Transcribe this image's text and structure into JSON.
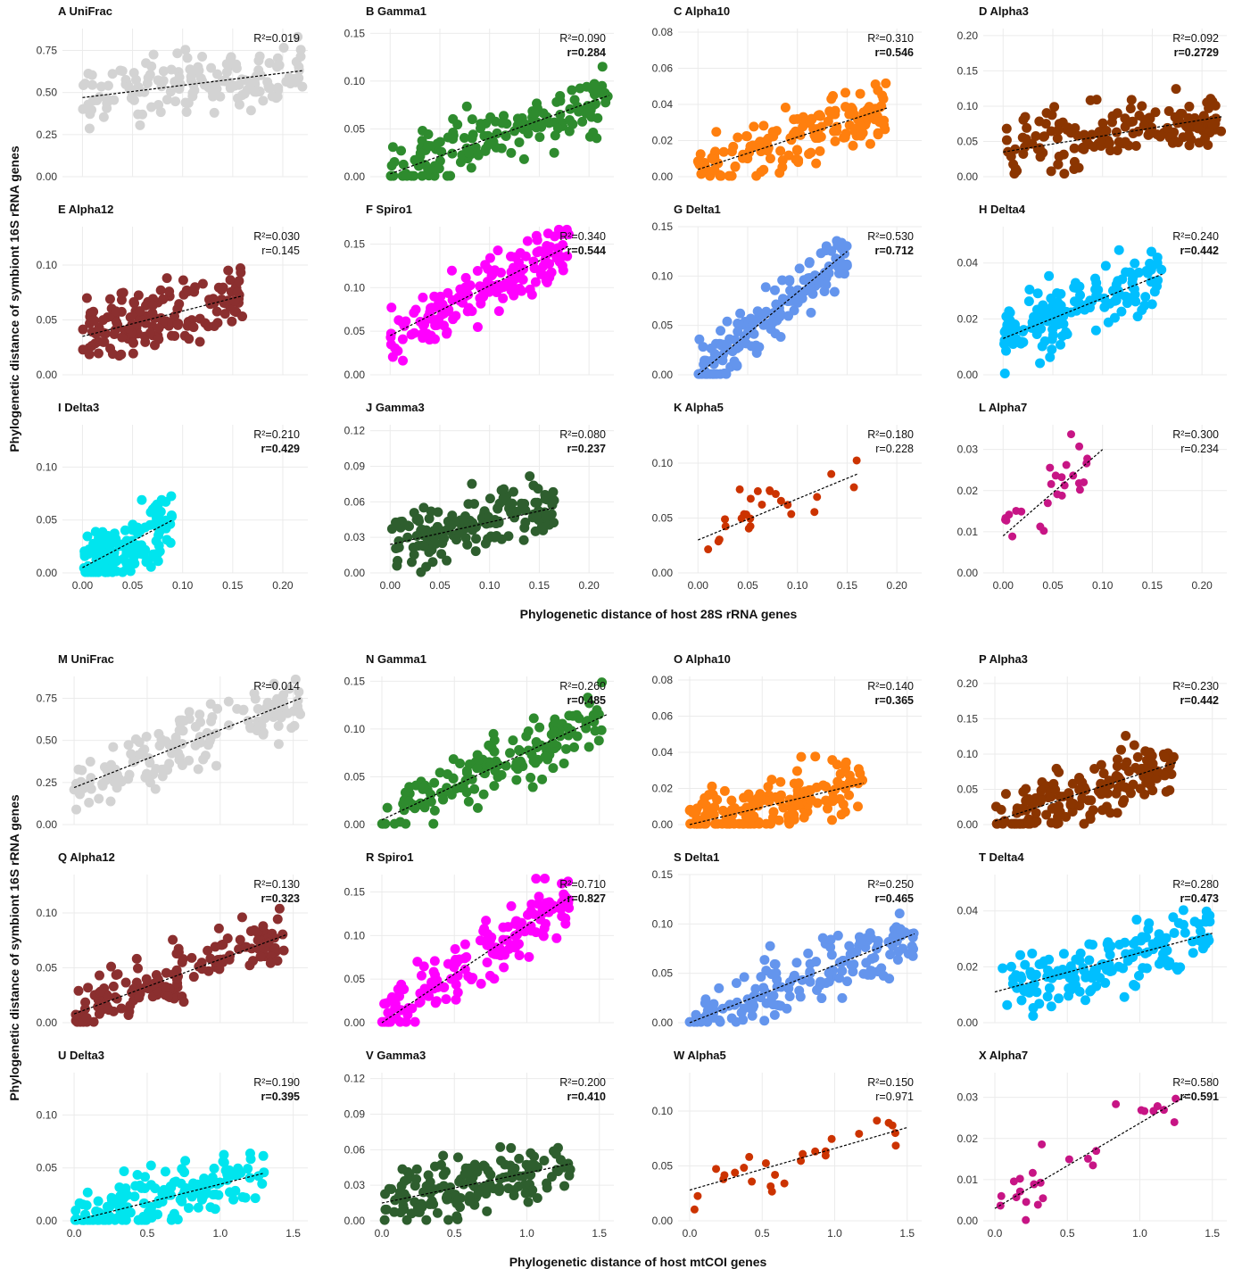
{
  "figure": {
    "x_title_top": "Phylogenetic distance of host 28S rRNA genes",
    "x_title_bottom": "Phylogenetic distance of host mtCOI genes",
    "y_title_top": "Phylogenetic distance of symbiont 16S rRNA genes",
    "y_title_bottom": "Phylogenetic distance of symbiont 16S rRNA genes"
  },
  "chart_data": [
    {
      "type": "scatter",
      "letter": "A",
      "label": "UniFrac",
      "title": "A  UniFrac",
      "color": "#d3d3d3",
      "xlim": [
        -0.02,
        0.225
      ],
      "ylim": [
        0,
        0.88
      ],
      "xticks": [],
      "yticks": [
        0,
        0.25,
        0.5,
        0.75
      ],
      "ytick_labels": [
        "0.00",
        "0.25",
        "0.50",
        "0.75"
      ],
      "r2": "R²=0.019",
      "r": "",
      "r_bold": false,
      "trend": {
        "x": [
          0,
          0.22
        ],
        "y": [
          0.47,
          0.63
        ]
      }
    },
    {
      "type": "scatter",
      "letter": "B",
      "label": "Gamma1",
      "title": "B  Gamma1",
      "color": "#2e8b2e",
      "xlim": [
        -0.02,
        0.225
      ],
      "ylim": [
        0,
        0.155
      ],
      "xticks": [],
      "yticks": [
        0,
        0.05,
        0.1,
        0.15
      ],
      "ytick_labels": [
        "0.00",
        "0.05",
        "0.10",
        "0.15"
      ],
      "r2": "R²=0.090",
      "r": "r=0.284",
      "r_bold": true,
      "trend": {
        "x": [
          0,
          0.22
        ],
        "y": [
          0.003,
          0.085
        ]
      }
    },
    {
      "type": "scatter",
      "letter": "C",
      "label": "Alpha10",
      "title": "C  Alpha10",
      "color": "#ff7f0e",
      "xlim": [
        -0.02,
        0.225
      ],
      "ylim": [
        0,
        0.082
      ],
      "xticks": [],
      "yticks": [
        0,
        0.02,
        0.04,
        0.06,
        0.08
      ],
      "ytick_labels": [
        "0.00",
        "0.02",
        "0.04",
        "0.06",
        "0.08"
      ],
      "r2": "R²=0.310",
      "r": "r=0.546",
      "r_bold": true,
      "trend": {
        "x": [
          0,
          0.19
        ],
        "y": [
          0.004,
          0.038
        ]
      }
    },
    {
      "type": "scatter",
      "letter": "D",
      "label": "Alpha3",
      "title": "D  Alpha3",
      "color": "#8b3500",
      "xlim": [
        -0.02,
        0.225
      ],
      "ylim": [
        0,
        0.21
      ],
      "xticks": [],
      "yticks": [
        0,
        0.05,
        0.1,
        0.15,
        0.2
      ],
      "ytick_labels": [
        "0.00",
        "0.05",
        "0.10",
        "0.15",
        "0.20"
      ],
      "r2": "R²=0.092",
      "r": "r=0.2729",
      "r_bold": true,
      "trend": {
        "x": [
          0,
          0.22
        ],
        "y": [
          0.035,
          0.085
        ]
      }
    },
    {
      "type": "scatter",
      "letter": "E",
      "label": "Alpha12",
      "title": "E  Alpha12",
      "color": "#8b2f2f",
      "xlim": [
        -0.02,
        0.225
      ],
      "ylim": [
        0,
        0.135
      ],
      "xticks": [],
      "yticks": [
        0,
        0.05,
        0.1
      ],
      "ytick_labels": [
        "0.00",
        "0.05",
        "0.10"
      ],
      "r2": "R²=0.030",
      "r": "r=0.145",
      "r_bold": false,
      "trend": {
        "x": [
          0,
          0.16
        ],
        "y": [
          0.035,
          0.072
        ]
      }
    },
    {
      "type": "scatter",
      "letter": "F",
      "label": "Spiro1",
      "title": "F  Spiro1",
      "color": "#ff00ff",
      "xlim": [
        -0.02,
        0.225
      ],
      "ylim": [
        0,
        0.17
      ],
      "xticks": [],
      "yticks": [
        0,
        0.05,
        0.1,
        0.15
      ],
      "ytick_labels": [
        "0.00",
        "0.05",
        "0.10",
        "0.15"
      ],
      "r2": "R²=0.340",
      "r": "r=0.544",
      "r_bold": true,
      "trend": {
        "x": [
          0,
          0.18
        ],
        "y": [
          0.045,
          0.148
        ]
      }
    },
    {
      "type": "scatter",
      "letter": "G",
      "label": "Delta1",
      "title": "G  Delta1",
      "color": "#6495ed",
      "xlim": [
        -0.02,
        0.225
      ],
      "ylim": [
        0,
        0.15
      ],
      "xticks": [],
      "yticks": [
        0,
        0.05,
        0.1,
        0.15
      ],
      "ytick_labels": [
        "0.00",
        "0.05",
        "0.10",
        "0.15"
      ],
      "r2": "R²=0.530",
      "r": "r=0.712",
      "r_bold": true,
      "trend": {
        "x": [
          0,
          0.15
        ],
        "y": [
          0.0,
          0.125
        ]
      }
    },
    {
      "type": "scatter",
      "letter": "H",
      "label": "Delta4",
      "title": "H  Delta4",
      "color": "#00bfff",
      "xlim": [
        -0.02,
        0.225
      ],
      "ylim": [
        0,
        0.053
      ],
      "xticks": [],
      "yticks": [
        0,
        0.02,
        0.04
      ],
      "ytick_labels": [
        "0.00",
        "0.02",
        "0.04"
      ],
      "r2": "R²=0.240",
      "r": "r=0.442",
      "r_bold": true,
      "trend": {
        "x": [
          0,
          0.16
        ],
        "y": [
          0.013,
          0.036
        ]
      }
    },
    {
      "type": "scatter",
      "letter": "I",
      "label": "Delta3",
      "title": "I  Delta3",
      "color": "#00e5ee",
      "xlim": [
        -0.02,
        0.225
      ],
      "ylim": [
        0,
        0.14
      ],
      "xticks": [
        0,
        0.05,
        0.1,
        0.15,
        0.2
      ],
      "xtick_labels": [
        "0.00",
        "0.05",
        "0.10",
        "0.15",
        "0.20"
      ],
      "yticks": [
        0,
        0.05,
        0.1
      ],
      "ytick_labels": [
        "0.00",
        "0.05",
        "0.10"
      ],
      "r2": "R²=0.210",
      "r": "r=0.429",
      "r_bold": true,
      "trend": {
        "x": [
          0,
          0.09
        ],
        "y": [
          0.005,
          0.05
        ]
      }
    },
    {
      "type": "scatter",
      "letter": "J",
      "label": "Gamma3",
      "title": "J  Gamma3",
      "color": "#2e5e2e",
      "xlim": [
        -0.02,
        0.225
      ],
      "ylim": [
        0,
        0.125
      ],
      "xticks": [
        0,
        0.05,
        0.1,
        0.15,
        0.2
      ],
      "xtick_labels": [
        "0.00",
        "0.05",
        "0.10",
        "0.15",
        "0.20"
      ],
      "yticks": [
        0,
        0.03,
        0.06,
        0.09,
        0.12
      ],
      "ytick_labels": [
        "0.00",
        "0.03",
        "0.06",
        "0.09",
        "0.12"
      ],
      "r2": "R²=0.080",
      "r": "r=0.237",
      "r_bold": true,
      "trend": {
        "x": [
          0,
          0.165
        ],
        "y": [
          0.024,
          0.055
        ]
      }
    },
    {
      "type": "scatter",
      "letter": "K",
      "label": "Alpha5",
      "title": "K  Alpha5",
      "color": "#cc3300",
      "xlim": [
        -0.02,
        0.225
      ],
      "ylim": [
        0,
        0.135
      ],
      "xticks": [
        0,
        0.05,
        0.1,
        0.15,
        0.2
      ],
      "xtick_labels": [
        "0.00",
        "0.05",
        "0.10",
        "0.15",
        "0.20"
      ],
      "yticks": [
        0,
        0.05,
        0.1
      ],
      "ytick_labels": [
        "0.00",
        "0.05",
        "0.10"
      ],
      "r2": "R²=0.180",
      "r": "r=0.228",
      "r_bold": false,
      "trend": {
        "x": [
          0,
          0.16
        ],
        "y": [
          0.03,
          0.09
        ]
      }
    },
    {
      "type": "scatter",
      "letter": "L",
      "label": "Alpha7",
      "title": "L  Alpha7",
      "color": "#c71585",
      "xlim": [
        -0.02,
        0.225
      ],
      "ylim": [
        0,
        0.036
      ],
      "xticks": [
        0,
        0.05,
        0.1,
        0.15,
        0.2
      ],
      "xtick_labels": [
        "0.00",
        "0.05",
        "0.10",
        "0.15",
        "0.20"
      ],
      "yticks": [
        0,
        0.01,
        0.02,
        0.03
      ],
      "ytick_labels": [
        "0.00",
        "0.01",
        "0.02",
        "0.03"
      ],
      "r2": "R²=0.300",
      "r": "r=0.234",
      "r_bold": false,
      "trend": {
        "x": [
          0,
          0.1
        ],
        "y": [
          0.009,
          0.03
        ]
      }
    },
    {
      "type": "scatter",
      "letter": "M",
      "label": "UniFrac",
      "title": "M  UniFrac",
      "color": "#d3d3d3",
      "xlim": [
        -0.08,
        1.6
      ],
      "ylim": [
        0,
        0.88
      ],
      "xticks": [],
      "yticks": [
        0,
        0.25,
        0.5,
        0.75
      ],
      "ytick_labels": [
        "0.00",
        "0.25",
        "0.50",
        "0.75"
      ],
      "r2": "R²=0.014",
      "r": "",
      "r_bold": false,
      "trend": {
        "x": [
          0,
          1.55
        ],
        "y": [
          0.22,
          0.75
        ]
      }
    },
    {
      "type": "scatter",
      "letter": "N",
      "label": "Gamma1",
      "title": "N  Gamma1",
      "color": "#2e8b2e",
      "xlim": [
        -0.08,
        1.6
      ],
      "ylim": [
        0,
        0.155
      ],
      "xticks": [],
      "yticks": [
        0,
        0.05,
        0.1,
        0.15
      ],
      "ytick_labels": [
        "0.00",
        "0.05",
        "0.10",
        "0.15"
      ],
      "r2": "R²=0.260",
      "r": "r=0.485",
      "r_bold": true,
      "trend": {
        "x": [
          0,
          1.55
        ],
        "y": [
          0.005,
          0.115
        ]
      }
    },
    {
      "type": "scatter",
      "letter": "O",
      "label": "Alpha10",
      "title": "O  Alpha10",
      "color": "#ff7f0e",
      "xlim": [
        -0.08,
        1.6
      ],
      "ylim": [
        0,
        0.082
      ],
      "xticks": [],
      "yticks": [
        0,
        0.02,
        0.04,
        0.06,
        0.08
      ],
      "ytick_labels": [
        "0.00",
        "0.02",
        "0.04",
        "0.06",
        "0.08"
      ],
      "r2": "R²=0.140",
      "r": "r=0.365",
      "r_bold": true,
      "trend": {
        "x": [
          0,
          1.2
        ],
        "y": [
          0.0,
          0.023
        ]
      }
    },
    {
      "type": "scatter",
      "letter": "P",
      "label": "Alpha3",
      "title": "P  Alpha3",
      "color": "#8b3500",
      "xlim": [
        -0.08,
        1.6
      ],
      "ylim": [
        0,
        0.21
      ],
      "xticks": [],
      "yticks": [
        0,
        0.05,
        0.1,
        0.15,
        0.2
      ],
      "ytick_labels": [
        "0.00",
        "0.05",
        "0.10",
        "0.15",
        "0.20"
      ],
      "r2": "R²=0.230",
      "r": "r=0.442",
      "r_bold": true,
      "trend": {
        "x": [
          0,
          1.25
        ],
        "y": [
          0.005,
          0.088
        ]
      }
    },
    {
      "type": "scatter",
      "letter": "Q",
      "label": "Alpha12",
      "title": "Q  Alpha12",
      "color": "#8b2f2f",
      "xlim": [
        -0.08,
        1.6
      ],
      "ylim": [
        0,
        0.135
      ],
      "xticks": [],
      "yticks": [
        0,
        0.05,
        0.1
      ],
      "ytick_labels": [
        "0.00",
        "0.05",
        "0.10"
      ],
      "r2": "R²=0.130",
      "r": "r=0.323",
      "r_bold": true,
      "trend": {
        "x": [
          0,
          1.45
        ],
        "y": [
          0.008,
          0.08
        ]
      }
    },
    {
      "type": "scatter",
      "letter": "R",
      "label": "Spiro1",
      "title": "R  Spiro1",
      "color": "#ff00ff",
      "xlim": [
        -0.08,
        1.6
      ],
      "ylim": [
        0,
        0.17
      ],
      "xticks": [],
      "yticks": [
        0,
        0.05,
        0.1,
        0.15
      ],
      "ytick_labels": [
        "0.00",
        "0.05",
        "0.10",
        "0.15"
      ],
      "r2": "R²=0.710",
      "r": "r=0.827",
      "r_bold": true,
      "trend": {
        "x": [
          0,
          1.3
        ],
        "y": [
          0.0,
          0.145
        ]
      }
    },
    {
      "type": "scatter",
      "letter": "S",
      "label": "Delta1",
      "title": "S  Delta1",
      "color": "#6495ed",
      "xlim": [
        -0.08,
        1.6
      ],
      "ylim": [
        0,
        0.15
      ],
      "xticks": [],
      "yticks": [
        0,
        0.05,
        0.1,
        0.15
      ],
      "ytick_labels": [
        "0.00",
        "0.05",
        "0.10",
        "0.15"
      ],
      "r2": "R²=0.250",
      "r": "r=0.465",
      "r_bold": true,
      "trend": {
        "x": [
          0,
          1.55
        ],
        "y": [
          0.0,
          0.09
        ]
      }
    },
    {
      "type": "scatter",
      "letter": "T",
      "label": "Delta4",
      "title": "T  Delta4",
      "color": "#00bfff",
      "xlim": [
        -0.08,
        1.6
      ],
      "ylim": [
        0,
        0.053
      ],
      "xticks": [],
      "yticks": [
        0,
        0.02,
        0.04
      ],
      "ytick_labels": [
        "0.00",
        "0.02",
        "0.04"
      ],
      "r2": "R²=0.280",
      "r": "r=0.473",
      "r_bold": true,
      "trend": {
        "x": [
          0,
          1.5
        ],
        "y": [
          0.011,
          0.032
        ]
      }
    },
    {
      "type": "scatter",
      "letter": "U",
      "label": "Delta3",
      "title": "U  Delta3",
      "color": "#00e5ee",
      "xlim": [
        -0.08,
        1.6
      ],
      "ylim": [
        0,
        0.14
      ],
      "xticks": [
        0,
        0.5,
        1,
        1.5
      ],
      "xtick_labels": [
        "0.0",
        "0.5",
        "1.0",
        "1.5"
      ],
      "yticks": [
        0,
        0.05,
        0.1
      ],
      "ytick_labels": [
        "0.00",
        "0.05",
        "0.10"
      ],
      "r2": "R²=0.190",
      "r": "r=0.395",
      "r_bold": true,
      "trend": {
        "x": [
          0,
          1.3
        ],
        "y": [
          0.0,
          0.045
        ]
      }
    },
    {
      "type": "scatter",
      "letter": "V",
      "label": "Gamma3",
      "title": "V  Gamma3",
      "color": "#2e5e2e",
      "xlim": [
        -0.08,
        1.6
      ],
      "ylim": [
        0,
        0.125
      ],
      "xticks": [
        0,
        0.5,
        1,
        1.5
      ],
      "xtick_labels": [
        "0.0",
        "0.5",
        "1.0",
        "1.5"
      ],
      "yticks": [
        0,
        0.03,
        0.06,
        0.09,
        0.12
      ],
      "ytick_labels": [
        "0.00",
        "0.03",
        "0.06",
        "0.09",
        "0.12"
      ],
      "r2": "R²=0.200",
      "r": "r=0.410",
      "r_bold": true,
      "trend": {
        "x": [
          0,
          1.3
        ],
        "y": [
          0.015,
          0.048
        ]
      }
    },
    {
      "type": "scatter",
      "letter": "W",
      "label": "Alpha5",
      "title": "W  Alpha5",
      "color": "#cc3300",
      "xlim": [
        -0.08,
        1.6
      ],
      "ylim": [
        0,
        0.135
      ],
      "xticks": [
        0,
        0.5,
        1,
        1.5
      ],
      "xtick_labels": [
        "0.0",
        "0.5",
        "1.0",
        "1.5"
      ],
      "yticks": [
        0,
        0.05,
        0.1
      ],
      "ytick_labels": [
        "0.00",
        "0.05",
        "0.10"
      ],
      "r2": "R²=0.150",
      "r": "r=0.971",
      "r_bold": false,
      "trend": {
        "x": [
          0,
          1.5
        ],
        "y": [
          0.028,
          0.085
        ]
      }
    },
    {
      "type": "scatter",
      "letter": "X",
      "label": "Alpha7",
      "title": "X  Alpha7",
      "color": "#c71585",
      "xlim": [
        -0.08,
        1.6
      ],
      "ylim": [
        0,
        0.036
      ],
      "xticks": [
        0,
        0.5,
        1,
        1.5
      ],
      "xtick_labels": [
        "0.0",
        "0.5",
        "1.0",
        "1.5"
      ],
      "yticks": [
        0,
        0.01,
        0.02,
        0.03
      ],
      "ytick_labels": [
        "0.00",
        "0.01",
        "0.02",
        "0.03"
      ],
      "r2": "R²=0.580",
      "r": "r=0.591",
      "r_bold": true,
      "trend": {
        "x": [
          0,
          1.35
        ],
        "y": [
          0.003,
          0.031
        ]
      }
    }
  ]
}
